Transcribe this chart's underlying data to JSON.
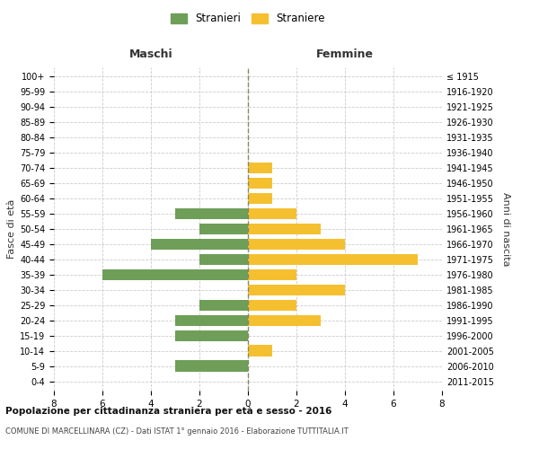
{
  "age_groups": [
    "0-4",
    "5-9",
    "10-14",
    "15-19",
    "20-24",
    "25-29",
    "30-34",
    "35-39",
    "40-44",
    "45-49",
    "50-54",
    "55-59",
    "60-64",
    "65-69",
    "70-74",
    "75-79",
    "80-84",
    "85-89",
    "90-94",
    "95-99",
    "100+"
  ],
  "birth_years": [
    "2011-2015",
    "2006-2010",
    "2001-2005",
    "1996-2000",
    "1991-1995",
    "1986-1990",
    "1981-1985",
    "1976-1980",
    "1971-1975",
    "1966-1970",
    "1961-1965",
    "1956-1960",
    "1951-1955",
    "1946-1950",
    "1941-1945",
    "1936-1940",
    "1931-1935",
    "1926-1930",
    "1921-1925",
    "1916-1920",
    "≤ 1915"
  ],
  "males": [
    0,
    3,
    0,
    3,
    3,
    2,
    0,
    6,
    2,
    4,
    2,
    3,
    0,
    0,
    0,
    0,
    0,
    0,
    0,
    0,
    0
  ],
  "females": [
    0,
    0,
    1,
    0,
    3,
    2,
    4,
    2,
    7,
    4,
    3,
    2,
    1,
    1,
    1,
    0,
    0,
    0,
    0,
    0,
    0
  ],
  "male_color": "#6e9e58",
  "female_color": "#f5c030",
  "male_label": "Stranieri",
  "female_label": "Straniere",
  "title_main": "Popolazione per cittadinanza straniera per età e sesso - 2016",
  "title_sub": "COMUNE DI MARCELLINARA (CZ) - Dati ISTAT 1° gennaio 2016 - Elaborazione TUTTITALIA.IT",
  "header_left": "Maschi",
  "header_right": "Femmine",
  "ylabel_left": "Fasce di età",
  "ylabel_right": "Anni di nascita",
  "xlim": 8,
  "background_color": "#ffffff",
  "grid_color": "#cccccc",
  "bar_height": 0.75
}
